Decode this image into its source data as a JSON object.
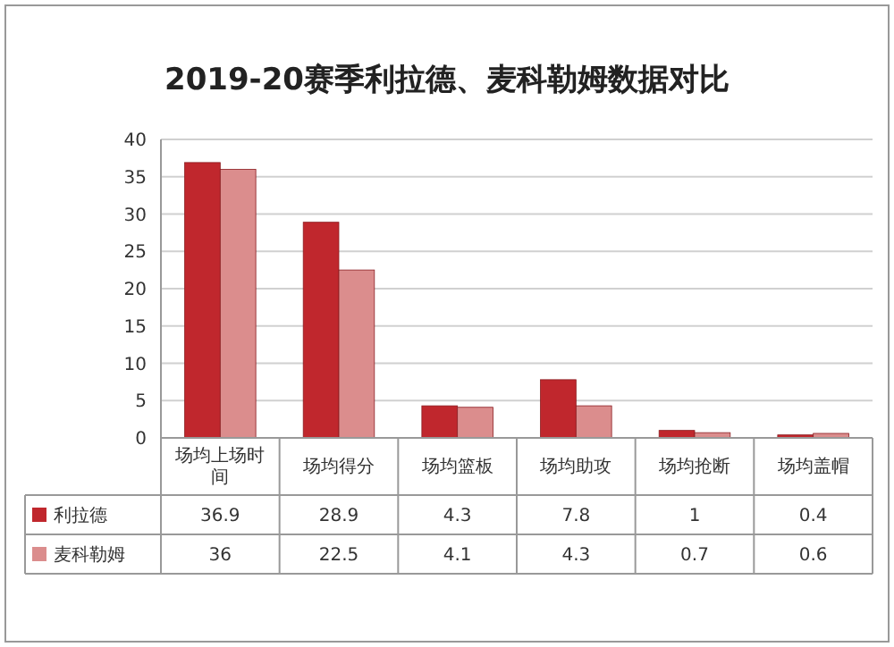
{
  "chart_data": {
    "type": "bar",
    "title": "2019-20赛季利拉德、麦科勒姆数据对比",
    "categories": [
      "场均上场时间",
      "场均得分",
      "场均篮板",
      "场均助攻",
      "场均抢断",
      "场均盖帽"
    ],
    "series": [
      {
        "name": "利拉德",
        "color": "#c0272d",
        "values": [
          36.9,
          28.9,
          4.3,
          7.8,
          1,
          0.4
        ]
      },
      {
        "name": "麦科勒姆",
        "color": "#db8d8d",
        "values": [
          36,
          22.5,
          4.1,
          4.3,
          0.7,
          0.6
        ]
      }
    ],
    "ylim": [
      0,
      40
    ],
    "yticks": [
      0,
      5,
      10,
      15,
      20,
      25,
      30,
      35,
      40
    ],
    "grid": "y",
    "data_labels": true,
    "legend": "bottom"
  }
}
